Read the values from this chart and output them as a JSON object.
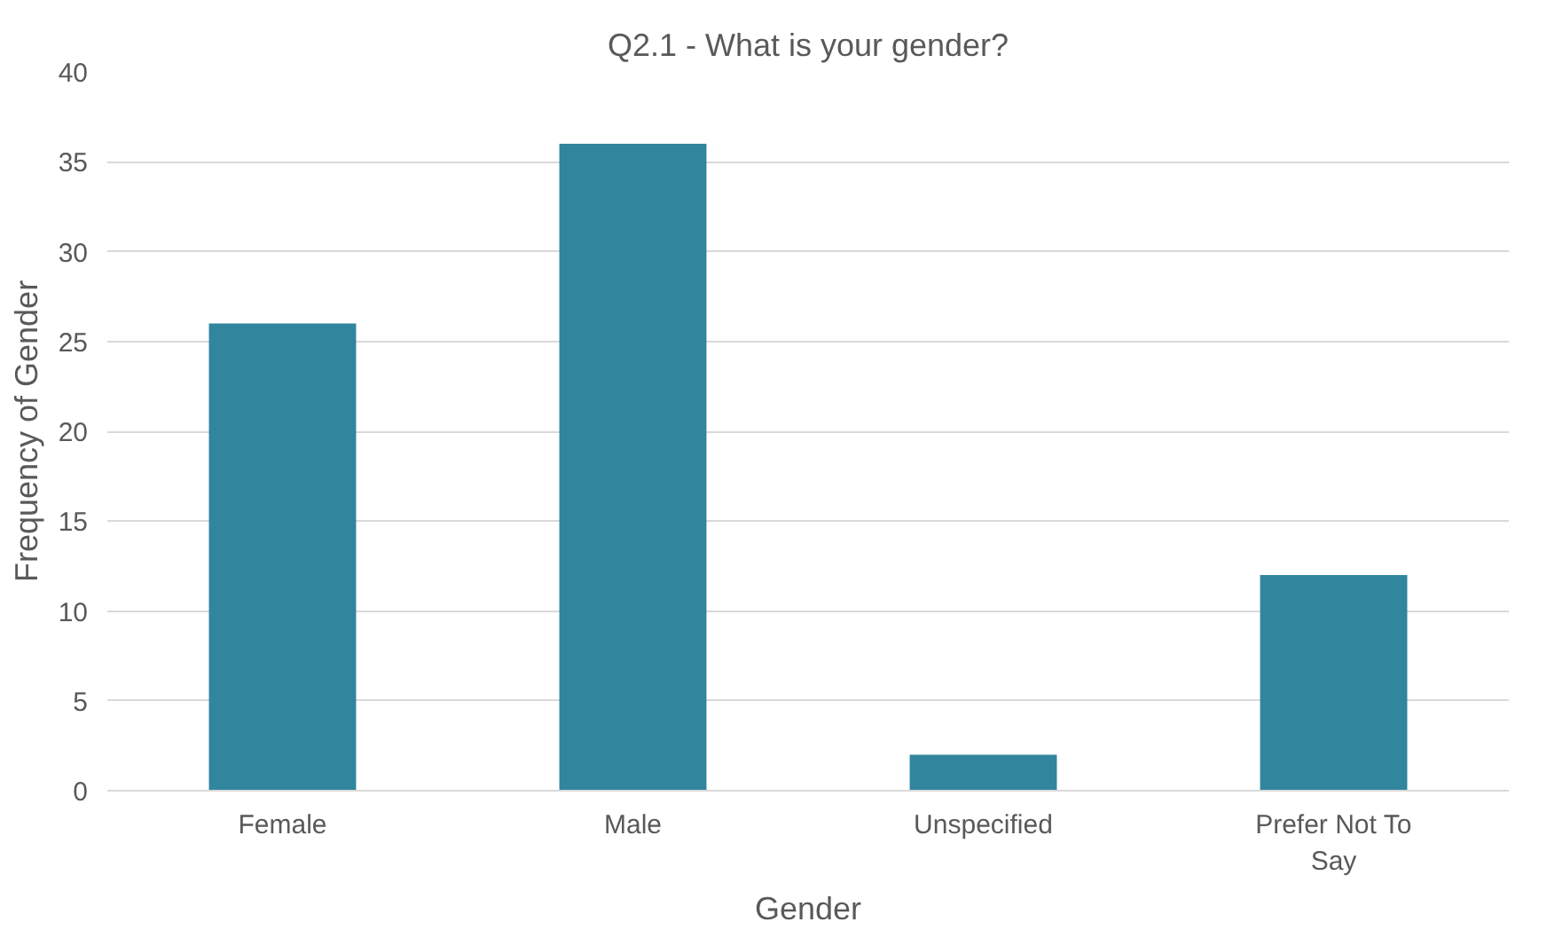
{
  "chart_data": {
    "type": "bar",
    "title": "Q2.1 - What is your gender?",
    "xlabel": "Gender",
    "ylabel": "Frequency of Gender",
    "categories": [
      "Female",
      "Male",
      "Unspecified",
      "Prefer Not To Say"
    ],
    "values": [
      26,
      36,
      2,
      12
    ],
    "color": "#31859c",
    "ylim": [
      0,
      40
    ],
    "yticks": [
      0,
      5,
      10,
      15,
      20,
      25,
      30,
      35,
      40
    ],
    "grid": "y"
  }
}
